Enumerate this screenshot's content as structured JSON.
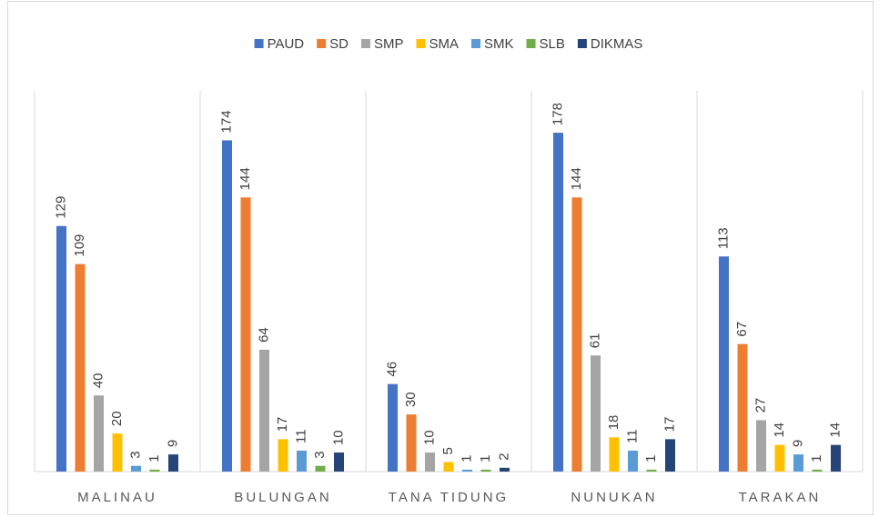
{
  "chart_data": {
    "type": "bar",
    "categories": [
      "MALINAU",
      "BULUNGAN",
      "TANA TIDUNG",
      "NUNUKAN",
      "TARAKAN"
    ],
    "series": [
      {
        "name": "PAUD",
        "color": "#4472c4",
        "values": [
          129,
          174,
          46,
          178,
          113
        ]
      },
      {
        "name": "SD",
        "color": "#ed7d31",
        "values": [
          109,
          144,
          30,
          144,
          67
        ]
      },
      {
        "name": "SMP",
        "color": "#a5a5a5",
        "values": [
          40,
          64,
          10,
          61,
          27
        ]
      },
      {
        "name": "SMA",
        "color": "#ffc000",
        "values": [
          20,
          17,
          5,
          18,
          14
        ]
      },
      {
        "name": "SMK",
        "color": "#5b9bd5",
        "values": [
          3,
          11,
          1,
          11,
          9
        ]
      },
      {
        "name": "SLB",
        "color": "#70ad47",
        "values": [
          1,
          3,
          1,
          1,
          1
        ]
      },
      {
        "name": "DIKMAS",
        "color": "#264478",
        "values": [
          9,
          10,
          2,
          17,
          14
        ]
      }
    ],
    "ylim": [
      0,
      200
    ],
    "legend": "top"
  }
}
